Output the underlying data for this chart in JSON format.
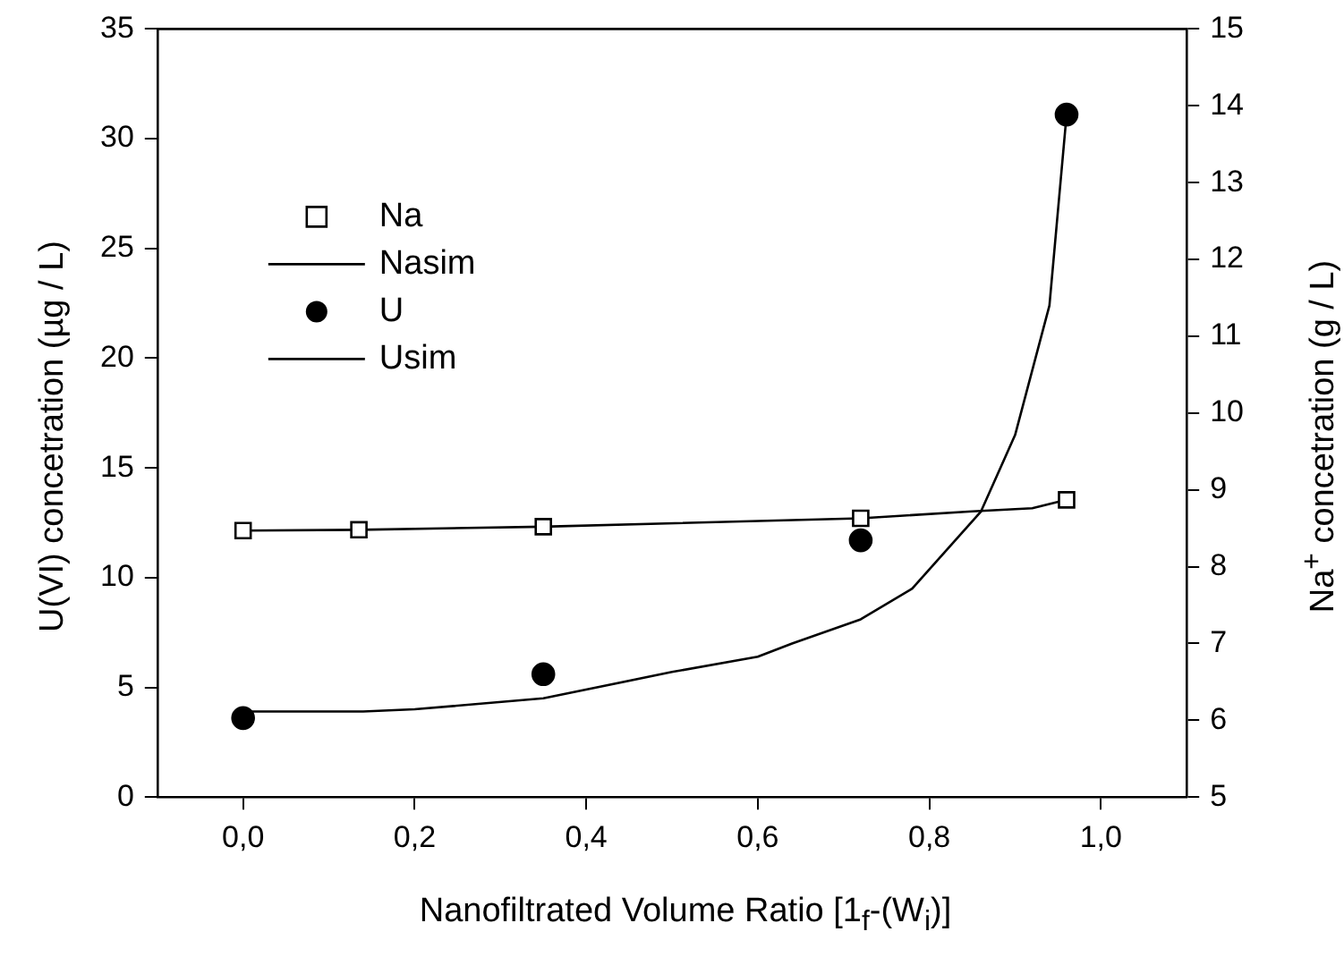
{
  "chart_data": {
    "type": "scatter",
    "xlabel": "Nanofiltrated Volume Ratio [1$_{f}$-(W$_{i}$)]",
    "ylabel": "U(VI) concetration (µg / L)",
    "y2label": "Na$^{+}$ concetration (g / L)",
    "xlim": [
      -0.1,
      1.1
    ],
    "xticks": [
      {
        "value": 0,
        "label": "0,0"
      },
      {
        "value": 0.2,
        "label": "0,2"
      },
      {
        "value": 0.4,
        "label": "0,4"
      },
      {
        "value": 0.6,
        "label": "0,6"
      },
      {
        "value": 0.8,
        "label": "0,8"
      },
      {
        "value": 1,
        "label": "1,0"
      }
    ],
    "ylim": [
      0,
      35
    ],
    "yticks": [
      0,
      5,
      10,
      15,
      20,
      25,
      30,
      35
    ],
    "y2lim": [
      5,
      15
    ],
    "y2ticks": [
      5,
      6,
      7,
      8,
      9,
      10,
      11,
      12,
      13,
      14,
      15
    ],
    "grid": false,
    "legend": "top left",
    "series": [
      {
        "name": "Na",
        "type": "scatter",
        "marker": "square",
        "axis": "y2",
        "color": "#000000",
        "x": [
          0,
          0.135,
          0.35,
          0.72,
          0.96
        ],
        "values": [
          8.47,
          8.48,
          8.52,
          8.63,
          8.87
        ]
      },
      {
        "name": "Nasim",
        "type": "line",
        "marker": "none",
        "axis": "y2",
        "color": "#000000",
        "x": [
          0,
          0.135,
          0.35,
          0.72,
          0.85,
          0.92,
          0.96
        ],
        "values": [
          8.47,
          8.48,
          8.52,
          8.63,
          8.72,
          8.76,
          8.87
        ]
      },
      {
        "name": "U",
        "type": "scatter",
        "marker": "circle",
        "axis": "y",
        "color": "#000000",
        "x": [
          0,
          0.35,
          0.72,
          0.96
        ],
        "values": [
          3.6,
          5.6,
          11.7,
          31.1
        ]
      },
      {
        "name": "Usim",
        "type": "line",
        "marker": "none",
        "axis": "y",
        "color": "#000000",
        "x": [
          0,
          0.14,
          0.2,
          0.35,
          0.5,
          0.6,
          0.64,
          0.72,
          0.78,
          0.86,
          0.9,
          0.94,
          0.96
        ],
        "values": [
          3.9,
          3.9,
          4.0,
          4.5,
          5.7,
          6.4,
          7.0,
          8.1,
          9.5,
          13.0,
          16.5,
          22.4,
          31.1
        ]
      }
    ]
  }
}
